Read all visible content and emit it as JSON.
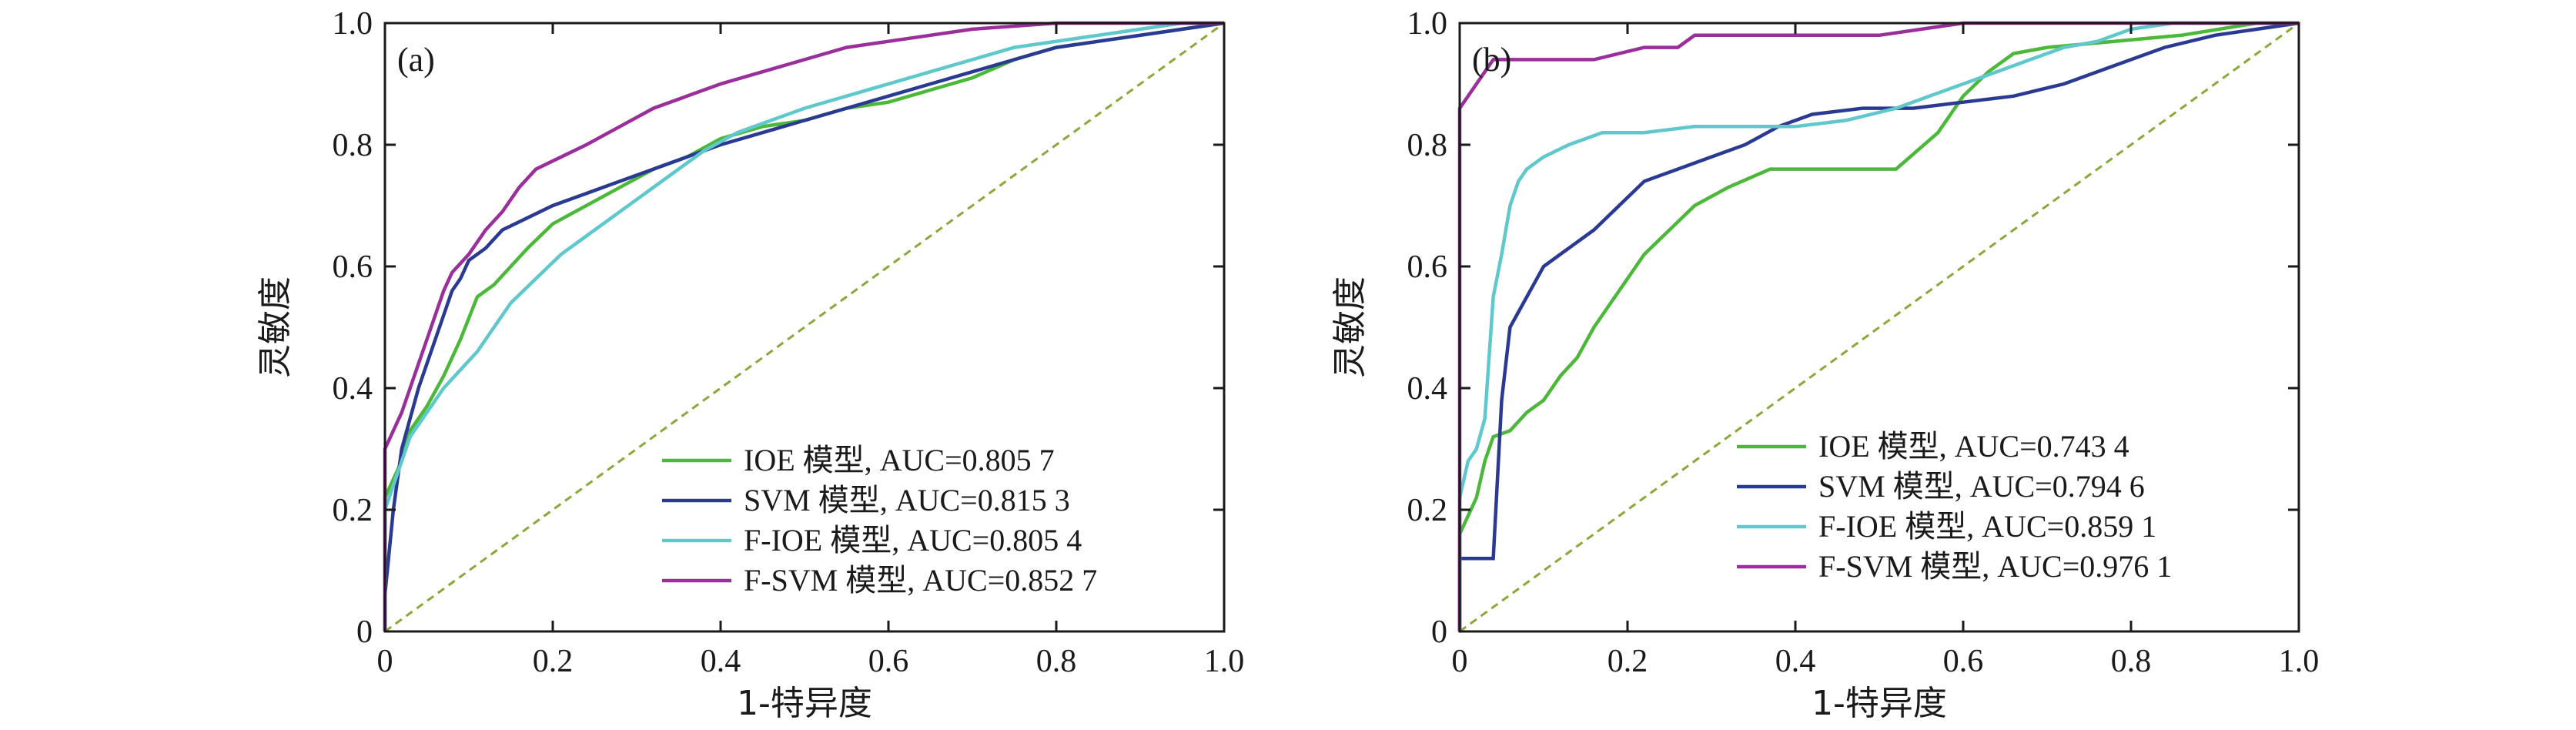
{
  "chart_data": [
    {
      "type": "line",
      "panel_label": "(a)",
      "xlabel": "1-特异度",
      "ylabel": "灵敏度",
      "xlim": [
        0,
        1.0
      ],
      "ylim": [
        0,
        1.0
      ],
      "x_ticks": [
        "0",
        "0.2",
        "0.4",
        "0.6",
        "0.8",
        "1.0"
      ],
      "y_ticks": [
        "0",
        "0.2",
        "0.4",
        "0.6",
        "0.8",
        "1.0"
      ],
      "grid": false,
      "legend_position": "bottom-right",
      "diagonal": {
        "color": "#8aa83a",
        "dashed": true
      },
      "series": [
        {
          "name": "IOE 模型, AUC=0.805 7",
          "color": "#4cb83a",
          "points": [
            [
              0,
              0
            ],
            [
              0,
              0.22
            ],
            [
              0.01,
              0.25
            ],
            [
              0.02,
              0.28
            ],
            [
              0.03,
              0.33
            ],
            [
              0.05,
              0.37
            ],
            [
              0.07,
              0.42
            ],
            [
              0.09,
              0.48
            ],
            [
              0.11,
              0.55
            ],
            [
              0.13,
              0.57
            ],
            [
              0.15,
              0.6
            ],
            [
              0.17,
              0.63
            ],
            [
              0.2,
              0.67
            ],
            [
              0.24,
              0.7
            ],
            [
              0.28,
              0.73
            ],
            [
              0.32,
              0.76
            ],
            [
              0.36,
              0.78
            ],
            [
              0.4,
              0.81
            ],
            [
              0.45,
              0.83
            ],
            [
              0.5,
              0.84
            ],
            [
              0.55,
              0.86
            ],
            [
              0.6,
              0.87
            ],
            [
              0.65,
              0.89
            ],
            [
              0.7,
              0.91
            ],
            [
              0.75,
              0.94
            ],
            [
              0.8,
              0.96
            ],
            [
              0.85,
              0.97
            ],
            [
              0.9,
              0.98
            ],
            [
              0.95,
              0.99
            ],
            [
              1.0,
              1.0
            ]
          ]
        },
        {
          "name": "SVM 模型, AUC=0.815 3",
          "color": "#2a3a93",
          "points": [
            [
              0,
              0
            ],
            [
              0,
              0.06
            ],
            [
              0.01,
              0.2
            ],
            [
              0.02,
              0.3
            ],
            [
              0.03,
              0.35
            ],
            [
              0.04,
              0.4
            ],
            [
              0.05,
              0.44
            ],
            [
              0.06,
              0.48
            ],
            [
              0.07,
              0.52
            ],
            [
              0.08,
              0.56
            ],
            [
              0.09,
              0.58
            ],
            [
              0.1,
              0.61
            ],
            [
              0.12,
              0.63
            ],
            [
              0.14,
              0.66
            ],
            [
              0.17,
              0.68
            ],
            [
              0.2,
              0.7
            ],
            [
              0.24,
              0.72
            ],
            [
              0.28,
              0.74
            ],
            [
              0.32,
              0.76
            ],
            [
              0.36,
              0.78
            ],
            [
              0.4,
              0.8
            ],
            [
              0.45,
              0.82
            ],
            [
              0.5,
              0.84
            ],
            [
              0.55,
              0.86
            ],
            [
              0.6,
              0.88
            ],
            [
              0.65,
              0.9
            ],
            [
              0.7,
              0.92
            ],
            [
              0.75,
              0.94
            ],
            [
              0.8,
              0.96
            ],
            [
              0.85,
              0.97
            ],
            [
              0.9,
              0.98
            ],
            [
              0.95,
              0.99
            ],
            [
              1.0,
              1.0
            ]
          ]
        },
        {
          "name": "F-IOE 模型, AUC=0.805 4",
          "color": "#5ec8cc",
          "points": [
            [
              0,
              0
            ],
            [
              0,
              0.2
            ],
            [
              0.01,
              0.24
            ],
            [
              0.02,
              0.28
            ],
            [
              0.03,
              0.32
            ],
            [
              0.05,
              0.36
            ],
            [
              0.07,
              0.4
            ],
            [
              0.09,
              0.43
            ],
            [
              0.11,
              0.46
            ],
            [
              0.13,
              0.5
            ],
            [
              0.15,
              0.54
            ],
            [
              0.18,
              0.58
            ],
            [
              0.21,
              0.62
            ],
            [
              0.24,
              0.65
            ],
            [
              0.27,
              0.68
            ],
            [
              0.3,
              0.71
            ],
            [
              0.34,
              0.75
            ],
            [
              0.38,
              0.79
            ],
            [
              0.42,
              0.82
            ],
            [
              0.46,
              0.84
            ],
            [
              0.5,
              0.86
            ],
            [
              0.55,
              0.88
            ],
            [
              0.6,
              0.9
            ],
            [
              0.65,
              0.92
            ],
            [
              0.7,
              0.94
            ],
            [
              0.75,
              0.96
            ],
            [
              0.8,
              0.97
            ],
            [
              0.85,
              0.98
            ],
            [
              0.9,
              0.99
            ],
            [
              0.95,
              1.0
            ],
            [
              1.0,
              1.0
            ]
          ]
        },
        {
          "name": "F-SVM 模型, AUC=0.852 7",
          "color": "#9a2f9c",
          "points": [
            [
              0,
              0
            ],
            [
              0,
              0.3
            ],
            [
              0.01,
              0.33
            ],
            [
              0.02,
              0.36
            ],
            [
              0.03,
              0.4
            ],
            [
              0.04,
              0.44
            ],
            [
              0.05,
              0.48
            ],
            [
              0.06,
              0.52
            ],
            [
              0.07,
              0.56
            ],
            [
              0.08,
              0.59
            ],
            [
              0.1,
              0.62
            ],
            [
              0.12,
              0.66
            ],
            [
              0.14,
              0.69
            ],
            [
              0.16,
              0.73
            ],
            [
              0.18,
              0.76
            ],
            [
              0.21,
              0.78
            ],
            [
              0.24,
              0.8
            ],
            [
              0.28,
              0.83
            ],
            [
              0.32,
              0.86
            ],
            [
              0.36,
              0.88
            ],
            [
              0.4,
              0.9
            ],
            [
              0.45,
              0.92
            ],
            [
              0.5,
              0.94
            ],
            [
              0.55,
              0.96
            ],
            [
              0.6,
              0.97
            ],
            [
              0.65,
              0.98
            ],
            [
              0.7,
              0.99
            ],
            [
              0.8,
              1.0
            ],
            [
              0.9,
              1.0
            ],
            [
              1.0,
              1.0
            ]
          ]
        }
      ]
    },
    {
      "type": "line",
      "panel_label": "(b)",
      "xlabel": "1-特异度",
      "ylabel": "灵敏度",
      "xlim": [
        0,
        1.0
      ],
      "ylim": [
        0,
        1.0
      ],
      "x_ticks": [
        "0",
        "0.2",
        "0.4",
        "0.6",
        "0.8",
        "1.0"
      ],
      "y_ticks": [
        "0",
        "0.2",
        "0.4",
        "0.6",
        "0.8",
        "1.0"
      ],
      "grid": false,
      "legend_position": "bottom-right",
      "diagonal": {
        "color": "#8aa83a",
        "dashed": true
      },
      "series": [
        {
          "name": "IOE 模型, AUC=0.743 4",
          "color": "#4cb83a",
          "points": [
            [
              0,
              0
            ],
            [
              0,
              0.16
            ],
            [
              0.01,
              0.19
            ],
            [
              0.02,
              0.22
            ],
            [
              0.03,
              0.28
            ],
            [
              0.04,
              0.32
            ],
            [
              0.06,
              0.33
            ],
            [
              0.08,
              0.36
            ],
            [
              0.1,
              0.38
            ],
            [
              0.12,
              0.42
            ],
            [
              0.14,
              0.45
            ],
            [
              0.16,
              0.5
            ],
            [
              0.18,
              0.54
            ],
            [
              0.2,
              0.58
            ],
            [
              0.22,
              0.62
            ],
            [
              0.25,
              0.66
            ],
            [
              0.28,
              0.7
            ],
            [
              0.32,
              0.73
            ],
            [
              0.37,
              0.76
            ],
            [
              0.42,
              0.76
            ],
            [
              0.47,
              0.76
            ],
            [
              0.52,
              0.76
            ],
            [
              0.57,
              0.82
            ],
            [
              0.6,
              0.88
            ],
            [
              0.63,
              0.92
            ],
            [
              0.66,
              0.95
            ],
            [
              0.7,
              0.96
            ],
            [
              0.78,
              0.97
            ],
            [
              0.86,
              0.98
            ],
            [
              0.95,
              1.0
            ],
            [
              1.0,
              1.0
            ]
          ]
        },
        {
          "name": "SVM 模型, AUC=0.794 6",
          "color": "#2a3a93",
          "points": [
            [
              0,
              0
            ],
            [
              0,
              0.12
            ],
            [
              0.02,
              0.12
            ],
            [
              0.04,
              0.12
            ],
            [
              0.05,
              0.38
            ],
            [
              0.06,
              0.5
            ],
            [
              0.08,
              0.55
            ],
            [
              0.1,
              0.6
            ],
            [
              0.13,
              0.63
            ],
            [
              0.16,
              0.66
            ],
            [
              0.19,
              0.7
            ],
            [
              0.22,
              0.74
            ],
            [
              0.26,
              0.76
            ],
            [
              0.3,
              0.78
            ],
            [
              0.34,
              0.8
            ],
            [
              0.38,
              0.83
            ],
            [
              0.42,
              0.85
            ],
            [
              0.48,
              0.86
            ],
            [
              0.54,
              0.86
            ],
            [
              0.6,
              0.87
            ],
            [
              0.66,
              0.88
            ],
            [
              0.72,
              0.9
            ],
            [
              0.78,
              0.93
            ],
            [
              0.84,
              0.96
            ],
            [
              0.9,
              0.98
            ],
            [
              0.95,
              0.99
            ],
            [
              1.0,
              1.0
            ]
          ]
        },
        {
          "name": "F-IOE 模型, AUC=0.859 1",
          "color": "#5ec8cc",
          "points": [
            [
              0,
              0
            ],
            [
              0,
              0.22
            ],
            [
              0.01,
              0.28
            ],
            [
              0.02,
              0.3
            ],
            [
              0.03,
              0.35
            ],
            [
              0.04,
              0.55
            ],
            [
              0.05,
              0.62
            ],
            [
              0.06,
              0.7
            ],
            [
              0.07,
              0.74
            ],
            [
              0.08,
              0.76
            ],
            [
              0.1,
              0.78
            ],
            [
              0.13,
              0.8
            ],
            [
              0.17,
              0.82
            ],
            [
              0.22,
              0.82
            ],
            [
              0.28,
              0.83
            ],
            [
              0.34,
              0.83
            ],
            [
              0.4,
              0.83
            ],
            [
              0.46,
              0.84
            ],
            [
              0.52,
              0.86
            ],
            [
              0.56,
              0.88
            ],
            [
              0.6,
              0.9
            ],
            [
              0.64,
              0.92
            ],
            [
              0.68,
              0.94
            ],
            [
              0.72,
              0.96
            ],
            [
              0.76,
              0.97
            ],
            [
              0.8,
              0.99
            ],
            [
              0.85,
              1.0
            ],
            [
              1.0,
              1.0
            ]
          ]
        },
        {
          "name": "F-SVM 模型, AUC=0.976 1",
          "color": "#9a2f9c",
          "points": [
            [
              0,
              0
            ],
            [
              0,
              0.86
            ],
            [
              0.01,
              0.88
            ],
            [
              0.02,
              0.9
            ],
            [
              0.03,
              0.92
            ],
            [
              0.04,
              0.94
            ],
            [
              0.08,
              0.94
            ],
            [
              0.16,
              0.94
            ],
            [
              0.22,
              0.96
            ],
            [
              0.26,
              0.96
            ],
            [
              0.28,
              0.98
            ],
            [
              0.4,
              0.98
            ],
            [
              0.5,
              0.98
            ],
            [
              0.6,
              1.0
            ],
            [
              0.8,
              1.0
            ],
            [
              1.0,
              1.0
            ]
          ]
        }
      ]
    }
  ]
}
